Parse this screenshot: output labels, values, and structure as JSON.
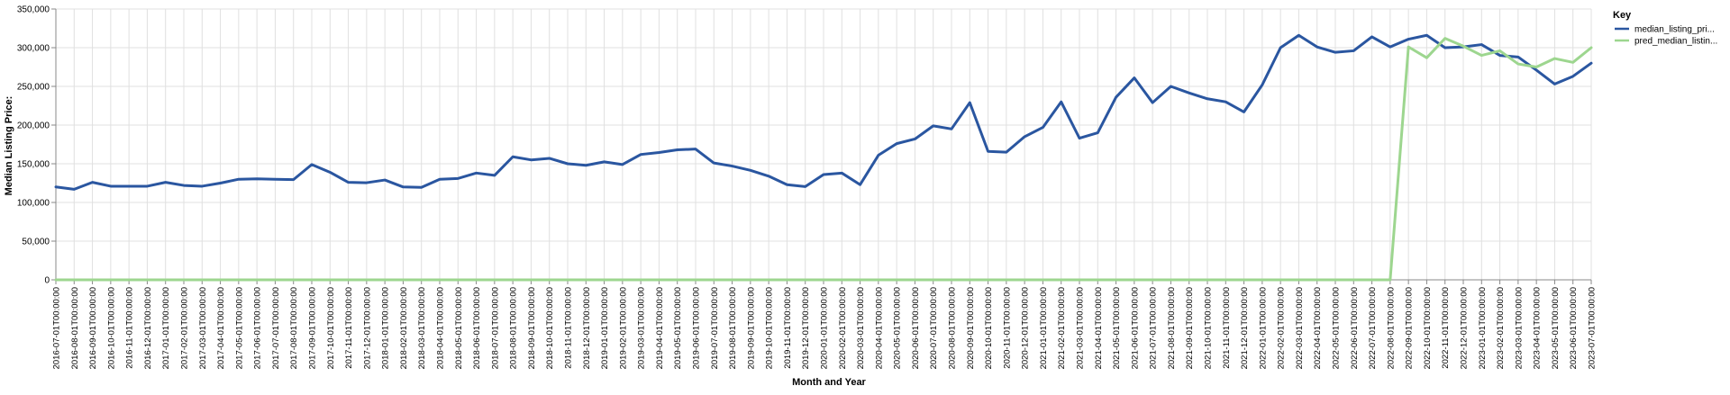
{
  "chart_data": {
    "type": "line",
    "title": "",
    "xlabel": "Month and Year",
    "ylabel": "Median Listing Price:",
    "ylim": [
      0,
      350000
    ],
    "y_ticks": [
      "0",
      "50,000",
      "100,000",
      "150,000",
      "200,000",
      "250,000",
      "300,000",
      "350,000"
    ],
    "y_tick_values": [
      0,
      50000,
      100000,
      150000,
      200000,
      250000,
      300000,
      350000
    ],
    "grid": true,
    "legend": {
      "title": "Key",
      "placement": "right",
      "entries": [
        "median_listing_pri...",
        "pred_median_listin..."
      ]
    },
    "colors": {
      "median_listing_price": "#2a56a0",
      "pred_median_listing_price": "#9dd68f",
      "grid": "#e0e0e0",
      "axis": "#888888"
    },
    "x": [
      "2016-07-01T00:00:00",
      "2016-08-01T00:00:00",
      "2016-09-01T00:00:00",
      "2016-10-01T00:00:00",
      "2016-11-01T00:00:00",
      "2016-12-01T00:00:00",
      "2017-01-01T00:00:00",
      "2017-02-01T00:00:00",
      "2017-03-01T00:00:00",
      "2017-04-01T00:00:00",
      "2017-05-01T00:00:00",
      "2017-06-01T00:00:00",
      "2017-07-01T00:00:00",
      "2017-08-01T00:00:00",
      "2017-09-01T00:00:00",
      "2017-10-01T00:00:00",
      "2017-11-01T00:00:00",
      "2017-12-01T00:00:00",
      "2018-01-01T00:00:00",
      "2018-02-01T00:00:00",
      "2018-03-01T00:00:00",
      "2018-04-01T00:00:00",
      "2018-05-01T00:00:00",
      "2018-06-01T00:00:00",
      "2018-07-01T00:00:00",
      "2018-08-01T00:00:00",
      "2018-09-01T00:00:00",
      "2018-10-01T00:00:00",
      "2018-11-01T00:00:00",
      "2018-12-01T00:00:00",
      "2019-01-01T00:00:00",
      "2019-02-01T00:00:00",
      "2019-03-01T00:00:00",
      "2019-04-01T00:00:00",
      "2019-05-01T00:00:00",
      "2019-06-01T00:00:00",
      "2019-07-01T00:00:00",
      "2019-08-01T00:00:00",
      "2019-09-01T00:00:00",
      "2019-10-01T00:00:00",
      "2019-11-01T00:00:00",
      "2019-12-01T00:00:00",
      "2020-01-01T00:00:00",
      "2020-02-01T00:00:00",
      "2020-03-01T00:00:00",
      "2020-04-01T00:00:00",
      "2020-05-01T00:00:00",
      "2020-06-01T00:00:00",
      "2020-07-01T00:00:00",
      "2020-08-01T00:00:00",
      "2020-09-01T00:00:00",
      "2020-10-01T00:00:00",
      "2020-11-01T00:00:00",
      "2020-12-01T00:00:00",
      "2021-01-01T00:00:00",
      "2021-02-01T00:00:00",
      "2021-03-01T00:00:00",
      "2021-04-01T00:00:00",
      "2021-05-01T00:00:00",
      "2021-06-01T00:00:00",
      "2021-07-01T00:00:00",
      "2021-08-01T00:00:00",
      "2021-09-01T00:00:00",
      "2021-10-01T00:00:00",
      "2021-11-01T00:00:00",
      "2021-12-01T00:00:00",
      "2022-01-01T00:00:00",
      "2022-02-01T00:00:00",
      "2022-03-01T00:00:00",
      "2022-04-01T00:00:00",
      "2022-05-01T00:00:00",
      "2022-06-01T00:00:00",
      "2022-07-01T00:00:00",
      "2022-08-01T00:00:00",
      "2022-09-01T00:00:00",
      "2022-10-01T00:00:00",
      "2022-11-01T00:00:00",
      "2022-12-01T00:00:00",
      "2023-01-01T00:00:00",
      "2023-02-01T00:00:00",
      "2023-03-01T00:00:00",
      "2023-04-01T00:00:00",
      "2023-05-01T00:00:00",
      "2023-06-01T00:00:00",
      "2023-07-01T00:00:00"
    ],
    "series": [
      {
        "name": "median_listing_pri...",
        "values": [
          120000,
          117000,
          126000,
          121000,
          121000,
          121000,
          126000,
          122000,
          121000,
          125000,
          130000,
          130500,
          130000,
          129500,
          149000,
          139000,
          126000,
          125500,
          129000,
          120000,
          119500,
          130000,
          131000,
          138000,
          135000,
          159000,
          155000,
          157000,
          150000,
          148000,
          152500,
          149000,
          162000,
          164500,
          168000,
          169000,
          151000,
          147000,
          141500,
          134000,
          123000,
          120500,
          136000,
          138000,
          123000,
          161000,
          176000,
          182000,
          199000,
          195000,
          229000,
          166000,
          165000,
          185000,
          197000,
          230000,
          183000,
          190000,
          236000,
          261000,
          229000,
          250000,
          241500,
          234000,
          230000,
          217000,
          252000,
          300000,
          316000,
          301000,
          294000,
          296000,
          314000,
          301000,
          311000,
          316000,
          300000,
          301000,
          304000,
          290000,
          288000,
          271000,
          253000,
          263000,
          280000
        ]
      },
      {
        "name": "pred_median_listin...",
        "values": [
          0,
          0,
          0,
          0,
          0,
          0,
          0,
          0,
          0,
          0,
          0,
          0,
          0,
          0,
          0,
          0,
          0,
          0,
          0,
          0,
          0,
          0,
          0,
          0,
          0,
          0,
          0,
          0,
          0,
          0,
          0,
          0,
          0,
          0,
          0,
          0,
          0,
          0,
          0,
          0,
          0,
          0,
          0,
          0,
          0,
          0,
          0,
          0,
          0,
          0,
          0,
          0,
          0,
          0,
          0,
          0,
          0,
          0,
          0,
          0,
          0,
          0,
          0,
          0,
          0,
          0,
          0,
          0,
          0,
          0,
          0,
          0,
          0,
          0,
          301000,
          287000,
          312000,
          302000,
          290000,
          296000,
          279000,
          275000,
          286000,
          281000,
          300000
        ]
      }
    ]
  }
}
